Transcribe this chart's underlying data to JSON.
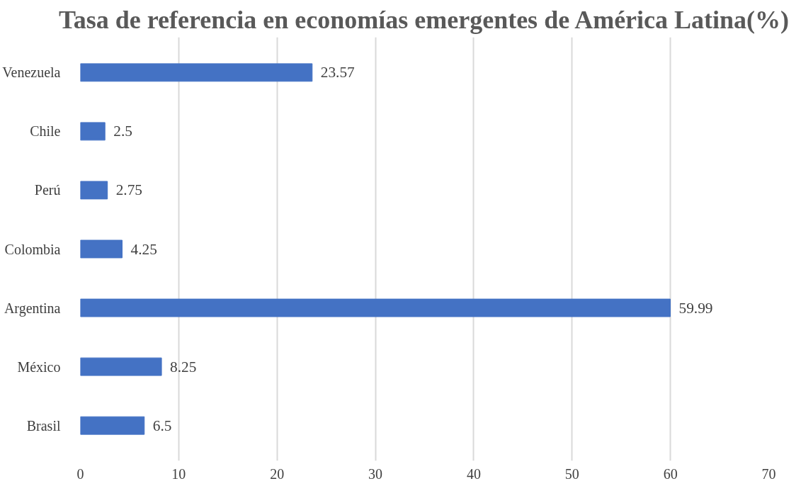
{
  "chart_data": {
    "type": "bar",
    "orientation": "horizontal",
    "title": "Tasa de referencia en economías emergentes de América Latina(%)",
    "categories": [
      "Venezuela",
      "Chile",
      "Perú",
      "Colombia",
      "Argentina",
      "México",
      "Brasil"
    ],
    "values": [
      23.57,
      2.5,
      2.75,
      4.25,
      59.99,
      8.25,
      6.5
    ],
    "color": "#4472c4",
    "xlim": [
      0,
      70
    ],
    "xticks": [
      0,
      10,
      20,
      30,
      40,
      50,
      60,
      70
    ],
    "grid": "x",
    "data_labels": true
  }
}
